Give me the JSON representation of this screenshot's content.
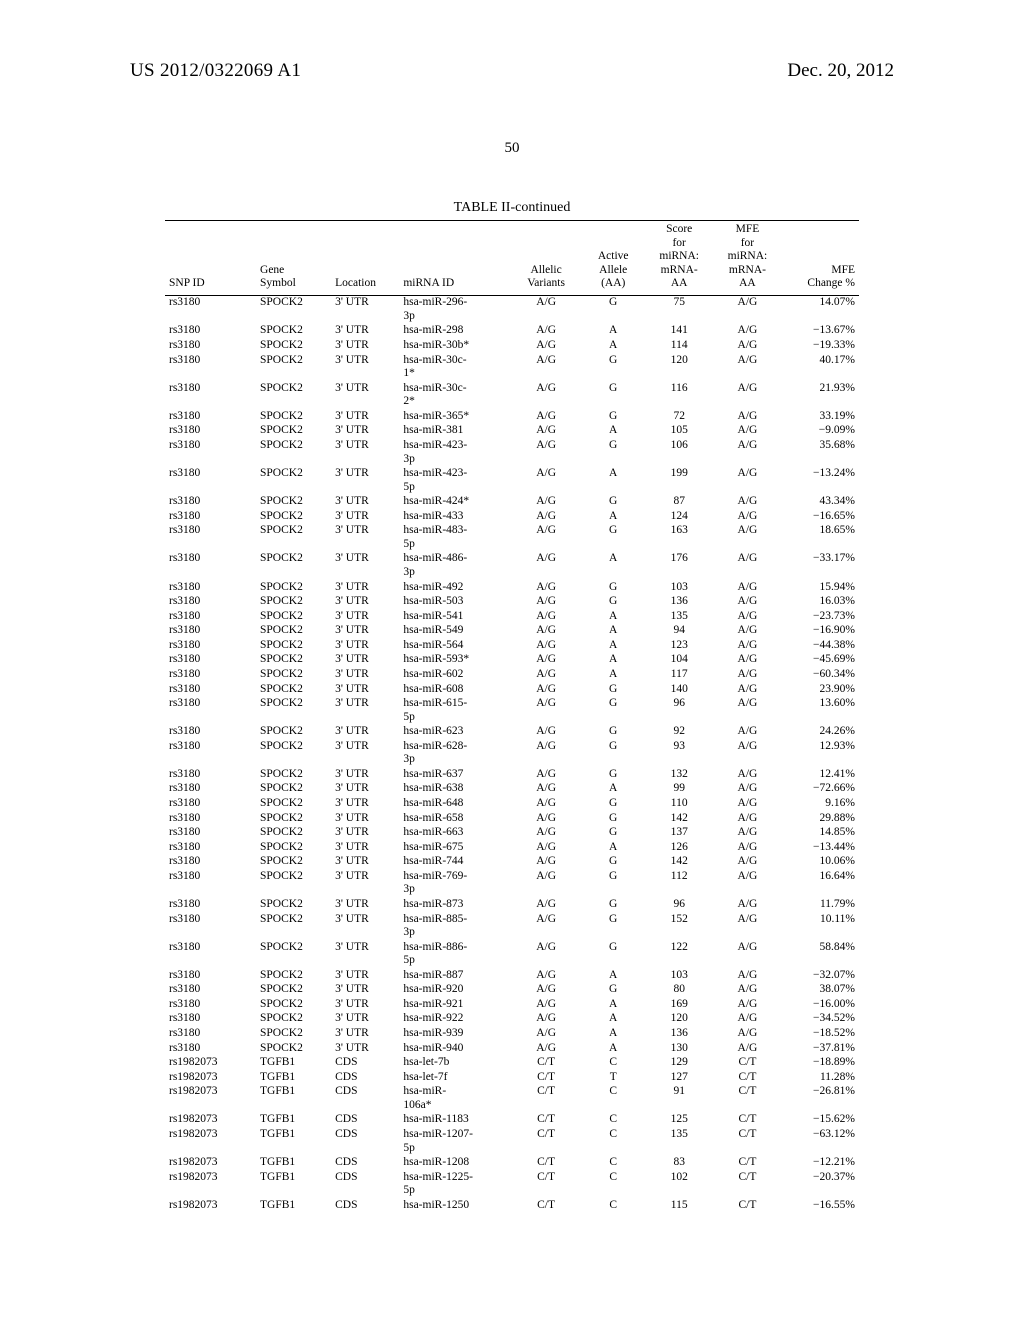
{
  "header": {
    "publication_number": "US 2012/0322069 A1",
    "publication_date": "Dec. 20, 2012",
    "page_number": "50"
  },
  "table": {
    "title": "TABLE II-continued",
    "columns": {
      "snp": "SNP ID",
      "gene": "Gene\nSymbol",
      "loc": "Location",
      "mir": "miRNA ID",
      "var": "Allelic\nVariants",
      "aa": "Active\nAllele\n(AA)",
      "score": "Score\nfor\nmiRNA:\nmRNA-\nAA",
      "mfe": "MFE\nfor\nmiRNA:\nmRNA-\nAA",
      "chg": "MFE\nChange %"
    },
    "rows": [
      [
        "rs3180",
        "SPOCK2",
        "3' UTR",
        "hsa-miR-296-3p",
        "A/G",
        "G",
        "75",
        "A/G",
        "14.07%"
      ],
      [
        "rs3180",
        "SPOCK2",
        "3' UTR",
        "hsa-miR-298",
        "A/G",
        "A",
        "141",
        "A/G",
        "−13.67%"
      ],
      [
        "rs3180",
        "SPOCK2",
        "3' UTR",
        "hsa-miR-30b*",
        "A/G",
        "A",
        "114",
        "A/G",
        "−19.33%"
      ],
      [
        "rs3180",
        "SPOCK2",
        "3' UTR",
        "hsa-miR-30c-1*",
        "A/G",
        "G",
        "120",
        "A/G",
        "40.17%"
      ],
      [
        "rs3180",
        "SPOCK2",
        "3' UTR",
        "hsa-miR-30c-2*",
        "A/G",
        "G",
        "116",
        "A/G",
        "21.93%"
      ],
      [
        "rs3180",
        "SPOCK2",
        "3' UTR",
        "hsa-miR-365*",
        "A/G",
        "G",
        "72",
        "A/G",
        "33.19%"
      ],
      [
        "rs3180",
        "SPOCK2",
        "3' UTR",
        "hsa-miR-381",
        "A/G",
        "A",
        "105",
        "A/G",
        "−9.09%"
      ],
      [
        "rs3180",
        "SPOCK2",
        "3' UTR",
        "hsa-miR-423-3p",
        "A/G",
        "G",
        "106",
        "A/G",
        "35.68%"
      ],
      [
        "rs3180",
        "SPOCK2",
        "3' UTR",
        "hsa-miR-423-5p",
        "A/G",
        "A",
        "199",
        "A/G",
        "−13.24%"
      ],
      [
        "rs3180",
        "SPOCK2",
        "3' UTR",
        "hsa-miR-424*",
        "A/G",
        "G",
        "87",
        "A/G",
        "43.34%"
      ],
      [
        "rs3180",
        "SPOCK2",
        "3' UTR",
        "hsa-miR-433",
        "A/G",
        "A",
        "124",
        "A/G",
        "−16.65%"
      ],
      [
        "rs3180",
        "SPOCK2",
        "3' UTR",
        "hsa-miR-483-5p",
        "A/G",
        "G",
        "163",
        "A/G",
        "18.65%"
      ],
      [
        "rs3180",
        "SPOCK2",
        "3' UTR",
        "hsa-miR-486-3p",
        "A/G",
        "A",
        "176",
        "A/G",
        "−33.17%"
      ],
      [
        "rs3180",
        "SPOCK2",
        "3' UTR",
        "hsa-miR-492",
        "A/G",
        "G",
        "103",
        "A/G",
        "15.94%"
      ],
      [
        "rs3180",
        "SPOCK2",
        "3' UTR",
        "hsa-miR-503",
        "A/G",
        "G",
        "136",
        "A/G",
        "16.03%"
      ],
      [
        "rs3180",
        "SPOCK2",
        "3' UTR",
        "hsa-miR-541",
        "A/G",
        "A",
        "135",
        "A/G",
        "−23.73%"
      ],
      [
        "rs3180",
        "SPOCK2",
        "3' UTR",
        "hsa-miR-549",
        "A/G",
        "A",
        "94",
        "A/G",
        "−16.90%"
      ],
      [
        "rs3180",
        "SPOCK2",
        "3' UTR",
        "hsa-miR-564",
        "A/G",
        "A",
        "123",
        "A/G",
        "−44.38%"
      ],
      [
        "rs3180",
        "SPOCK2",
        "3' UTR",
        "hsa-miR-593*",
        "A/G",
        "A",
        "104",
        "A/G",
        "−45.69%"
      ],
      [
        "rs3180",
        "SPOCK2",
        "3' UTR",
        "hsa-miR-602",
        "A/G",
        "A",
        "117",
        "A/G",
        "−60.34%"
      ],
      [
        "rs3180",
        "SPOCK2",
        "3' UTR",
        "hsa-miR-608",
        "A/G",
        "G",
        "140",
        "A/G",
        "23.90%"
      ],
      [
        "rs3180",
        "SPOCK2",
        "3' UTR",
        "hsa-miR-615-5p",
        "A/G",
        "G",
        "96",
        "A/G",
        "13.60%"
      ],
      [
        "rs3180",
        "SPOCK2",
        "3' UTR",
        "hsa-miR-623",
        "A/G",
        "G",
        "92",
        "A/G",
        "24.26%"
      ],
      [
        "rs3180",
        "SPOCK2",
        "3' UTR",
        "hsa-miR-628-3p",
        "A/G",
        "G",
        "93",
        "A/G",
        "12.93%"
      ],
      [
        "rs3180",
        "SPOCK2",
        "3' UTR",
        "hsa-miR-637",
        "A/G",
        "G",
        "132",
        "A/G",
        "12.41%"
      ],
      [
        "rs3180",
        "SPOCK2",
        "3' UTR",
        "hsa-miR-638",
        "A/G",
        "A",
        "99",
        "A/G",
        "−72.66%"
      ],
      [
        "rs3180",
        "SPOCK2",
        "3' UTR",
        "hsa-miR-648",
        "A/G",
        "G",
        "110",
        "A/G",
        "9.16%"
      ],
      [
        "rs3180",
        "SPOCK2",
        "3' UTR",
        "hsa-miR-658",
        "A/G",
        "G",
        "142",
        "A/G",
        "29.88%"
      ],
      [
        "rs3180",
        "SPOCK2",
        "3' UTR",
        "hsa-miR-663",
        "A/G",
        "G",
        "137",
        "A/G",
        "14.85%"
      ],
      [
        "rs3180",
        "SPOCK2",
        "3' UTR",
        "hsa-miR-675",
        "A/G",
        "A",
        "126",
        "A/G",
        "−13.44%"
      ],
      [
        "rs3180",
        "SPOCK2",
        "3' UTR",
        "hsa-miR-744",
        "A/G",
        "G",
        "142",
        "A/G",
        "10.06%"
      ],
      [
        "rs3180",
        "SPOCK2",
        "3' UTR",
        "hsa-miR-769-3p",
        "A/G",
        "G",
        "112",
        "A/G",
        "16.64%"
      ],
      [
        "rs3180",
        "SPOCK2",
        "3' UTR",
        "hsa-miR-873",
        "A/G",
        "G",
        "96",
        "A/G",
        "11.79%"
      ],
      [
        "rs3180",
        "SPOCK2",
        "3' UTR",
        "hsa-miR-885-3p",
        "A/G",
        "G",
        "152",
        "A/G",
        "10.11%"
      ],
      [
        "rs3180",
        "SPOCK2",
        "3' UTR",
        "hsa-miR-886-5p",
        "A/G",
        "G",
        "122",
        "A/G",
        "58.84%"
      ],
      [
        "rs3180",
        "SPOCK2",
        "3' UTR",
        "hsa-miR-887",
        "A/G",
        "A",
        "103",
        "A/G",
        "−32.07%"
      ],
      [
        "rs3180",
        "SPOCK2",
        "3' UTR",
        "hsa-miR-920",
        "A/G",
        "G",
        "80",
        "A/G",
        "38.07%"
      ],
      [
        "rs3180",
        "SPOCK2",
        "3' UTR",
        "hsa-miR-921",
        "A/G",
        "A",
        "169",
        "A/G",
        "−16.00%"
      ],
      [
        "rs3180",
        "SPOCK2",
        "3' UTR",
        "hsa-miR-922",
        "A/G",
        "A",
        "120",
        "A/G",
        "−34.52%"
      ],
      [
        "rs3180",
        "SPOCK2",
        "3' UTR",
        "hsa-miR-939",
        "A/G",
        "A",
        "136",
        "A/G",
        "−18.52%"
      ],
      [
        "rs3180",
        "SPOCK2",
        "3' UTR",
        "hsa-miR-940",
        "A/G",
        "A",
        "130",
        "A/G",
        "−37.81%"
      ],
      [
        "rs1982073",
        "TGFB1",
        "CDS",
        "hsa-let-7b",
        "C/T",
        "C",
        "129",
        "C/T",
        "−18.89%"
      ],
      [
        "rs1982073",
        "TGFB1",
        "CDS",
        "hsa-let-7f",
        "C/T",
        "T",
        "127",
        "C/T",
        "11.28%"
      ],
      [
        "rs1982073",
        "TGFB1",
        "CDS",
        "hsa-miR-106a*",
        "C/T",
        "C",
        "91",
        "C/T",
        "−26.81%"
      ],
      [
        "rs1982073",
        "TGFB1",
        "CDS",
        "hsa-miR-1183",
        "C/T",
        "C",
        "125",
        "C/T",
        "−15.62%"
      ],
      [
        "rs1982073",
        "TGFB1",
        "CDS",
        "hsa-miR-1207-5p",
        "C/T",
        "C",
        "135",
        "C/T",
        "−63.12%"
      ],
      [
        "rs1982073",
        "TGFB1",
        "CDS",
        "hsa-miR-1208",
        "C/T",
        "C",
        "83",
        "C/T",
        "−12.21%"
      ],
      [
        "rs1982073",
        "TGFB1",
        "CDS",
        "hsa-miR-1225-5p",
        "C/T",
        "C",
        "102",
        "C/T",
        "−20.37%"
      ],
      [
        "rs1982073",
        "TGFB1",
        "CDS",
        "hsa-miR-1250",
        "C/T",
        "C",
        "115",
        "C/T",
        "−16.55%"
      ]
    ]
  },
  "mir_wrap_width_chars": 12
}
